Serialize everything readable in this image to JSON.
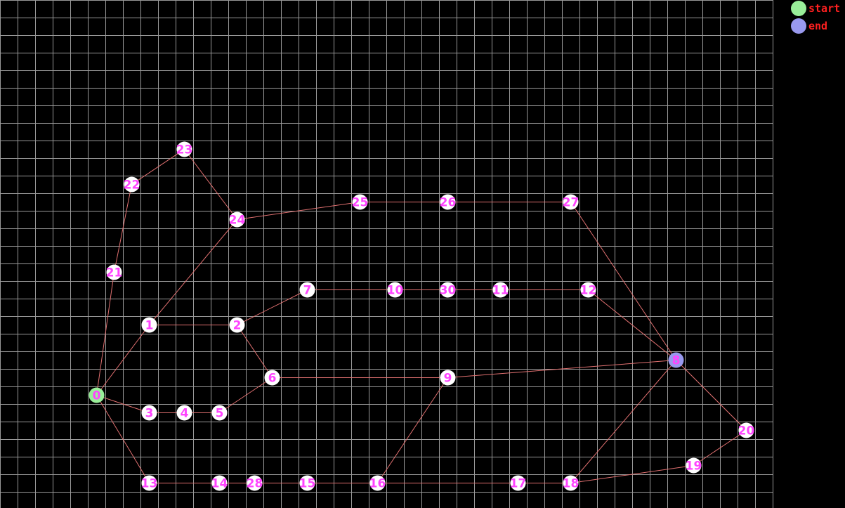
{
  "colors": {
    "background": "#000000",
    "grid": "#9a9a9a",
    "edge": "#e07070",
    "node_fill": "#ffffff",
    "node_label": "#ff44ff",
    "start_fill": "#99ee99",
    "end_fill": "#9999ee",
    "legend_text": "#ff2020"
  },
  "legend": {
    "start_label": "start",
    "end_label": "end"
  },
  "graph": {
    "grid_step": 25,
    "start_node": "0",
    "end_node": "8",
    "nodes": [
      {
        "id": "0",
        "col": 5.5,
        "row": 22.5
      },
      {
        "id": "1",
        "col": 8.5,
        "row": 18.5
      },
      {
        "id": "2",
        "col": 13.5,
        "row": 18.5
      },
      {
        "id": "3",
        "col": 8.5,
        "row": 23.5
      },
      {
        "id": "4",
        "col": 10.5,
        "row": 23.5
      },
      {
        "id": "5",
        "col": 12.5,
        "row": 23.5
      },
      {
        "id": "6",
        "col": 15.5,
        "row": 21.5
      },
      {
        "id": "7",
        "col": 17.5,
        "row": 16.5
      },
      {
        "id": "8",
        "col": 38.5,
        "row": 20.5
      },
      {
        "id": "9",
        "col": 25.5,
        "row": 21.5
      },
      {
        "id": "10",
        "col": 22.5,
        "row": 16.5
      },
      {
        "id": "11",
        "col": 28.5,
        "row": 16.5
      },
      {
        "id": "12",
        "col": 33.5,
        "row": 16.5
      },
      {
        "id": "13",
        "col": 8.5,
        "row": 27.5
      },
      {
        "id": "14",
        "col": 12.5,
        "row": 27.5
      },
      {
        "id": "15",
        "col": 17.5,
        "row": 27.5
      },
      {
        "id": "16",
        "col": 21.5,
        "row": 27.5
      },
      {
        "id": "17",
        "col": 29.5,
        "row": 27.5
      },
      {
        "id": "18",
        "col": 32.5,
        "row": 27.5
      },
      {
        "id": "19",
        "col": 39.5,
        "row": 26.5
      },
      {
        "id": "20",
        "col": 42.5,
        "row": 24.5
      },
      {
        "id": "21",
        "col": 6.5,
        "row": 15.5
      },
      {
        "id": "22",
        "col": 7.5,
        "row": 10.5
      },
      {
        "id": "23",
        "col": 10.5,
        "row": 8.5
      },
      {
        "id": "24",
        "col": 13.5,
        "row": 12.5
      },
      {
        "id": "25",
        "col": 20.5,
        "row": 11.5
      },
      {
        "id": "26",
        "col": 25.5,
        "row": 11.5
      },
      {
        "id": "27",
        "col": 32.5,
        "row": 11.5
      },
      {
        "id": "28",
        "col": 14.5,
        "row": 27.5
      },
      {
        "id": "30",
        "col": 25.5,
        "row": 16.5
      }
    ],
    "edges": [
      [
        "0",
        "1"
      ],
      [
        "1",
        "2"
      ],
      [
        "2",
        "7"
      ],
      [
        "2",
        "6"
      ],
      [
        "1",
        "24"
      ],
      [
        "0",
        "3"
      ],
      [
        "3",
        "4"
      ],
      [
        "4",
        "5"
      ],
      [
        "5",
        "6"
      ],
      [
        "6",
        "9"
      ],
      [
        "9",
        "8"
      ],
      [
        "7",
        "10"
      ],
      [
        "10",
        "30"
      ],
      [
        "30",
        "11"
      ],
      [
        "11",
        "12"
      ],
      [
        "12",
        "8"
      ],
      [
        "0",
        "21"
      ],
      [
        "21",
        "22"
      ],
      [
        "22",
        "23"
      ],
      [
        "23",
        "24"
      ],
      [
        "24",
        "25"
      ],
      [
        "25",
        "26"
      ],
      [
        "26",
        "27"
      ],
      [
        "27",
        "8"
      ],
      [
        "0",
        "13"
      ],
      [
        "13",
        "14"
      ],
      [
        "14",
        "28"
      ],
      [
        "28",
        "15"
      ],
      [
        "15",
        "16"
      ],
      [
        "16",
        "9"
      ],
      [
        "16",
        "17"
      ],
      [
        "17",
        "18"
      ],
      [
        "18",
        "8"
      ],
      [
        "18",
        "19"
      ],
      [
        "19",
        "20"
      ],
      [
        "20",
        "8"
      ]
    ]
  }
}
